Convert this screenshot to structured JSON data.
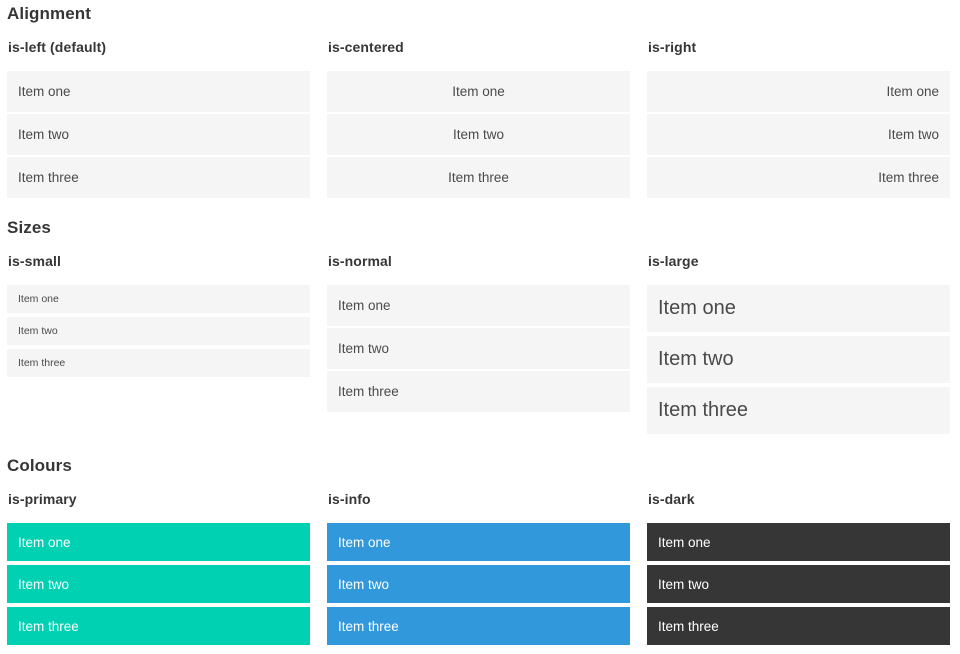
{
  "page": {
    "colors": {
      "item_background": "#f5f5f5",
      "item_text": "#4a4a4a",
      "heading_text": "#363636",
      "primary": "#00d1b2",
      "info": "#3298dc",
      "dark": "#363636",
      "colour_item_text": "#ffffff"
    },
    "sections": [
      {
        "title": "Alignment",
        "columns": [
          {
            "subtitle": "is-left (default)",
            "items": [
              "Item one",
              "Item two",
              "Item three"
            ]
          },
          {
            "subtitle": "is-centered",
            "items": [
              "Item one",
              "Item two",
              "Item three"
            ]
          },
          {
            "subtitle": "is-right",
            "items": [
              "Item one",
              "Item two",
              "Item three"
            ]
          }
        ]
      },
      {
        "title": "Sizes",
        "columns": [
          {
            "subtitle": "is-small",
            "items": [
              "Item one",
              "Item two",
              "Item three"
            ]
          },
          {
            "subtitle": "is-normal",
            "items": [
              "Item one",
              "Item two",
              "Item three"
            ]
          },
          {
            "subtitle": "is-large",
            "items": [
              "Item one",
              "Item two",
              "Item three"
            ]
          }
        ]
      },
      {
        "title": "Colours",
        "columns": [
          {
            "subtitle": "is-primary",
            "items": [
              "Item one",
              "Item two",
              "Item three"
            ]
          },
          {
            "subtitle": "is-info",
            "items": [
              "Item one",
              "Item two",
              "Item three"
            ]
          },
          {
            "subtitle": "is-dark",
            "items": [
              "Item one",
              "Item two",
              "Item three"
            ]
          }
        ]
      }
    ]
  }
}
